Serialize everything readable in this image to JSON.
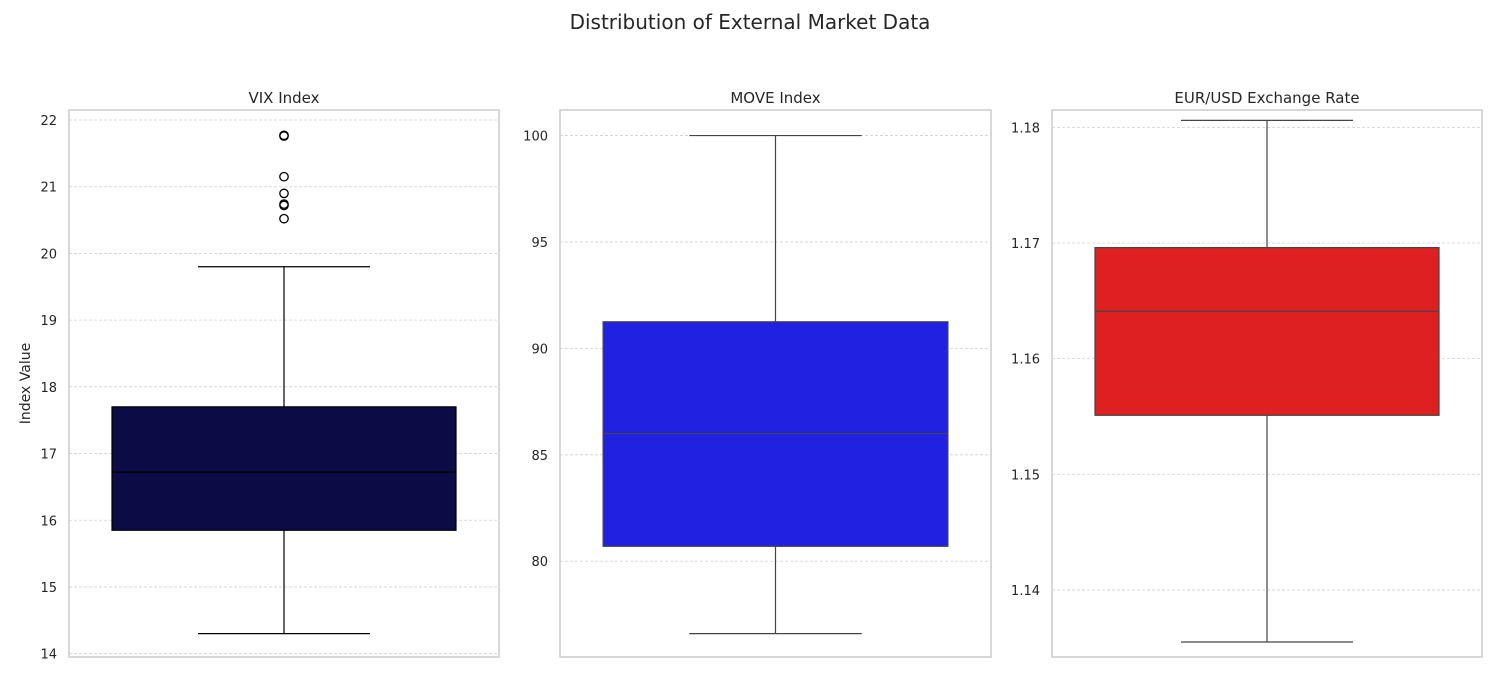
{
  "title": "Distribution of External Market Data",
  "chart_data": [
    {
      "type": "box",
      "title": "VIX Index",
      "ylabel": "Index Value",
      "xlabel": "",
      "ylim": [
        13.95,
        22.15
      ],
      "yticks": [
        14,
        15,
        16,
        17,
        18,
        19,
        20,
        21,
        22
      ],
      "tick_labels": [
        "14",
        "15",
        "16",
        "17",
        "18",
        "19",
        "20",
        "21",
        "22"
      ],
      "color": "#0b0b45",
      "line_color": "#000000",
      "whisker_low": 14.3,
      "q1": 15.85,
      "median": 16.72,
      "q3": 17.7,
      "whisker_high": 19.8,
      "outliers": [
        20.52,
        20.72,
        20.74,
        20.9,
        21.15,
        21.76,
        21.77
      ],
      "grid": true
    },
    {
      "type": "box",
      "title": "MOVE Index",
      "ylabel": "",
      "xlabel": "",
      "ylim": [
        75.5,
        101.2
      ],
      "yticks": [
        80,
        85,
        90,
        95,
        100
      ],
      "tick_labels": [
        "80",
        "85",
        "90",
        "95",
        "100"
      ],
      "color": "#2121e1",
      "line_color": "#444444",
      "whisker_low": 76.6,
      "q1": 80.7,
      "median": 86.0,
      "q3": 91.25,
      "whisker_high": 100.0,
      "outliers": [],
      "grid": true
    },
    {
      "type": "box",
      "title": "EUR/USD Exchange Rate",
      "ylabel": "",
      "xlabel": "",
      "ylim": [
        1.1342,
        1.1815
      ],
      "yticks": [
        1.14,
        1.15,
        1.16,
        1.17,
        1.18
      ],
      "tick_labels": [
        "1.14",
        "1.15",
        "1.16",
        "1.17",
        "1.18"
      ],
      "color": "#df2020",
      "line_color": "#444444",
      "whisker_low": 1.1355,
      "q1": 1.1551,
      "median": 1.1641,
      "q3": 1.1696,
      "whisker_high": 1.1806,
      "outliers": [],
      "grid": true
    }
  ]
}
